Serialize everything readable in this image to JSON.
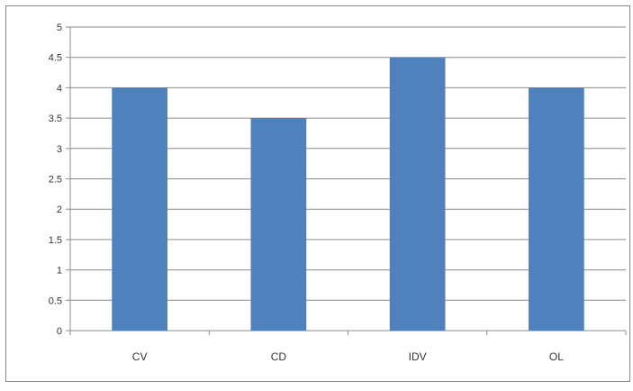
{
  "chart_data": {
    "type": "bar",
    "categories": [
      "CV",
      "CD",
      "IDV",
      "OL"
    ],
    "values": [
      4,
      3.5,
      4.5,
      4
    ],
    "ylim": [
      0,
      5
    ],
    "yticks": [
      "0",
      "0.5",
      "1",
      "1.5",
      "2",
      "2.5",
      "3",
      "3.5",
      "4",
      "4.5",
      "5"
    ],
    "grid": true,
    "legend": "none",
    "colors": {
      "bar": "#4f81bd",
      "grid": "#8c8c8c",
      "axis": "#8c8c8c"
    }
  }
}
